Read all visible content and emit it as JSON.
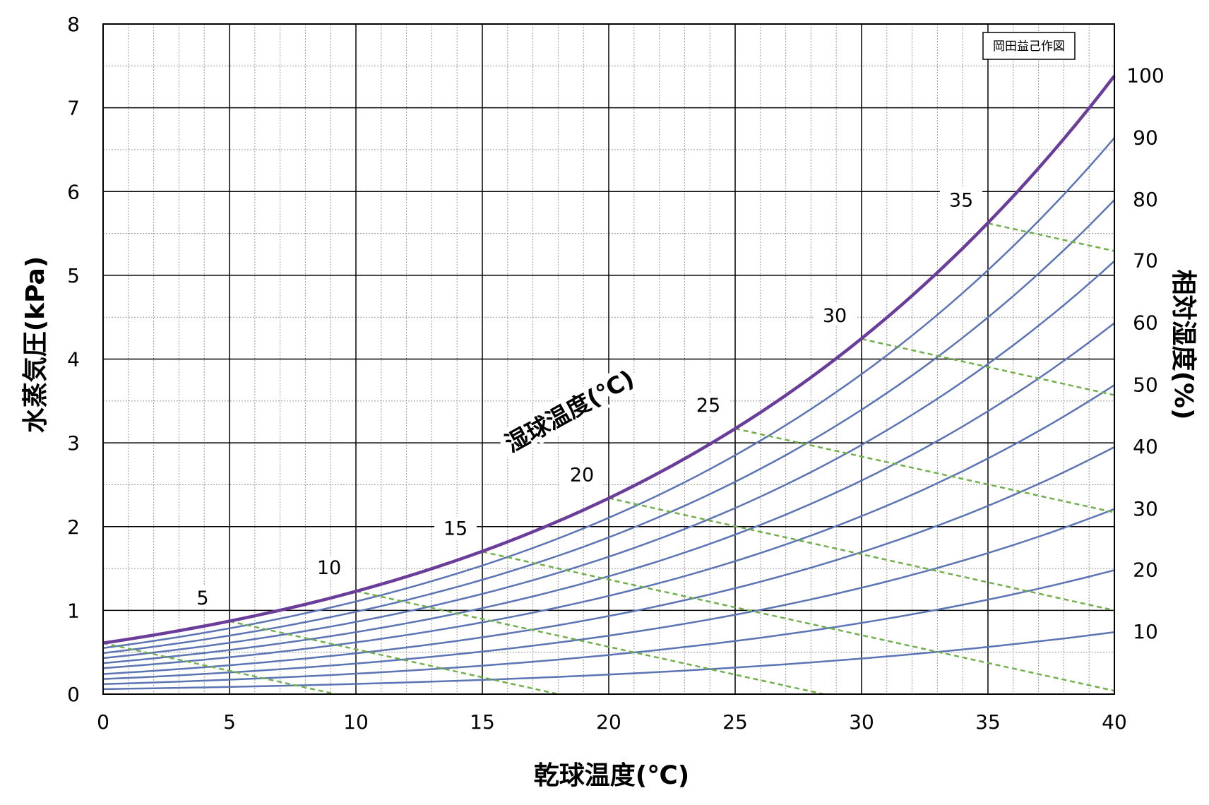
{
  "chart_data": {
    "type": "line",
    "xlabel": "乾球温度(℃)",
    "ylabel": "水蒸気圧(kPa)",
    "y2label": "相対湿度(%)",
    "xlim": [
      0,
      40
    ],
    "ylim": [
      0,
      8
    ],
    "x_ticks": [
      "0",
      "5",
      "10",
      "15",
      "20",
      "25",
      "30",
      "35",
      "40"
    ],
    "y_ticks": [
      "0",
      "1",
      "2",
      "3",
      "4",
      "5",
      "6",
      "7",
      "8"
    ],
    "grid": true,
    "credit": "岡田益己作図",
    "wet_bulb_title": "湿球温度(℃)",
    "saturation_curve": {
      "name": "100",
      "x": [
        0,
        5,
        10,
        15,
        20,
        25,
        30,
        35,
        40
      ],
      "y": [
        0.61,
        0.87,
        1.23,
        1.7,
        2.34,
        3.17,
        4.24,
        5.62,
        7.38
      ]
    },
    "rh_series": [
      {
        "name": "10",
        "y_at_0": 0.06,
        "y_at_40": 0.74
      },
      {
        "name": "20",
        "y_at_0": 0.12,
        "y_at_40": 1.48
      },
      {
        "name": "30",
        "y_at_0": 0.18,
        "y_at_40": 2.21
      },
      {
        "name": "40",
        "y_at_0": 0.24,
        "y_at_40": 2.95
      },
      {
        "name": "50",
        "y_at_0": 0.31,
        "y_at_40": 3.69
      },
      {
        "name": "60",
        "y_at_0": 0.37,
        "y_at_40": 4.43
      },
      {
        "name": "70",
        "y_at_0": 0.43,
        "y_at_40": 5.17
      },
      {
        "name": "80",
        "y_at_0": 0.49,
        "y_at_40": 5.9
      },
      {
        "name": "90",
        "y_at_0": 0.55,
        "y_at_40": 6.64
      }
    ],
    "wet_bulb_lines": [
      {
        "label": "",
        "start": [
          0,
          0.61
        ],
        "end": [
          9.2,
          0
        ]
      },
      {
        "label": "5",
        "start": [
          5,
          0.87
        ],
        "end": [
          18.0,
          0
        ]
      },
      {
        "label": "10",
        "start": [
          10,
          1.23
        ],
        "end": [
          28.5,
          0
        ]
      },
      {
        "label": "15",
        "start": [
          15,
          1.7
        ],
        "end": [
          40,
          0.04
        ]
      },
      {
        "label": "20",
        "start": [
          20,
          2.34
        ],
        "end": [
          40,
          1.0
        ]
      },
      {
        "label": "25",
        "start": [
          25,
          3.17
        ],
        "end": [
          40,
          2.17
        ]
      },
      {
        "label": "30",
        "start": [
          30,
          4.24
        ],
        "end": [
          40,
          3.57
        ]
      },
      {
        "label": "35",
        "start": [
          35,
          5.62
        ],
        "end": [
          40,
          5.29
        ]
      }
    ],
    "colors": {
      "saturation": "#6a3d9a",
      "rh": "#5b74b4",
      "wet_bulb": "#6fb04a",
      "grid_major": "#000000",
      "grid_minor": "#9a9a9a"
    }
  }
}
